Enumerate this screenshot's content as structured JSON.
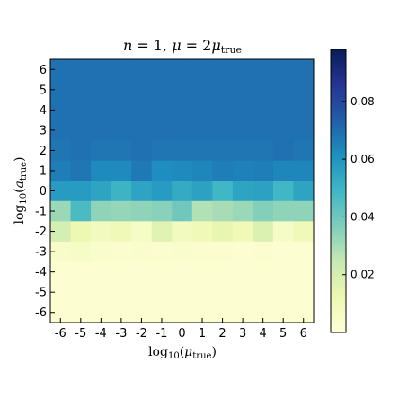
{
  "chart_data": {
    "type": "heatmap",
    "title": "n = 1,  μ = 2μ_true",
    "title_parts": {
      "lhs": "n",
      "eq1": " = 1,  ",
      "mu": "μ",
      "eq2": " = 2",
      "mu2": "μ",
      "sub": "true"
    },
    "xlabel": {
      "text": "log10(μ_true)",
      "base": "log",
      "sub10": "10",
      "open": "(",
      "var": "μ",
      "sub": "true",
      "close": ")"
    },
    "ylabel": {
      "text": "log10(a_true)",
      "base": "log",
      "sub10": "10",
      "open": "(",
      "var": "a",
      "sub": "true",
      "close": ")"
    },
    "x": [
      -6,
      -5,
      -4,
      -3,
      -2,
      -1,
      0,
      1,
      2,
      3,
      4,
      5,
      6
    ],
    "y": [
      -6,
      -5,
      -4,
      -3,
      -2,
      -1,
      0,
      1,
      2,
      3,
      4,
      5,
      6
    ],
    "x_tick_labels": [
      "-6",
      "-5",
      "-4",
      "-3",
      "-2",
      "-1",
      "0",
      "1",
      "2",
      "3",
      "4",
      "5",
      "6"
    ],
    "y_tick_labels": [
      "-6",
      "-5",
      "-4",
      "-3",
      "-2",
      "-1",
      "0",
      "1",
      "2",
      "3",
      "4",
      "5",
      "6"
    ],
    "values_rows_top_to_bottom": [
      [
        0.069,
        0.069,
        0.069,
        0.069,
        0.069,
        0.069,
        0.069,
        0.069,
        0.069,
        0.069,
        0.069,
        0.069,
        0.069
      ],
      [
        0.069,
        0.069,
        0.069,
        0.069,
        0.069,
        0.069,
        0.069,
        0.069,
        0.069,
        0.069,
        0.069,
        0.069,
        0.069
      ],
      [
        0.069,
        0.069,
        0.069,
        0.069,
        0.069,
        0.069,
        0.069,
        0.069,
        0.069,
        0.069,
        0.069,
        0.069,
        0.069
      ],
      [
        0.069,
        0.069,
        0.069,
        0.069,
        0.069,
        0.069,
        0.069,
        0.069,
        0.069,
        0.069,
        0.069,
        0.069,
        0.069
      ],
      [
        0.068,
        0.069,
        0.068,
        0.068,
        0.069,
        0.068,
        0.068,
        0.068,
        0.068,
        0.068,
        0.068,
        0.069,
        0.068
      ],
      [
        0.066,
        0.068,
        0.063,
        0.063,
        0.067,
        0.062,
        0.063,
        0.064,
        0.066,
        0.065,
        0.066,
        0.064,
        0.064
      ],
      [
        0.058,
        0.058,
        0.055,
        0.05,
        0.055,
        0.058,
        0.053,
        0.056,
        0.049,
        0.055,
        0.056,
        0.049,
        0.055
      ],
      [
        0.032,
        0.047,
        0.034,
        0.033,
        0.034,
        0.035,
        0.04,
        0.028,
        0.03,
        0.032,
        0.036,
        0.034,
        0.034
      ],
      [
        0.02,
        0.012,
        0.008,
        0.01,
        0.006,
        0.016,
        0.008,
        0.01,
        0.014,
        0.01,
        0.018,
        0.006,
        0.01
      ],
      [
        0.005,
        0.006,
        0.004,
        0.003,
        0.004,
        0.003,
        0.004,
        0.003,
        0.003,
        0.002,
        0.003,
        0.002,
        0.002
      ],
      [
        0.002,
        0.002,
        0.002,
        0.002,
        0.002,
        0.002,
        0.002,
        0.002,
        0.002,
        0.002,
        0.002,
        0.002,
        0.002
      ],
      [
        0.002,
        0.002,
        0.002,
        0.002,
        0.002,
        0.002,
        0.002,
        0.002,
        0.002,
        0.002,
        0.002,
        0.002,
        0.002
      ],
      [
        0.002,
        0.002,
        0.002,
        0.002,
        0.002,
        0.002,
        0.002,
        0.002,
        0.002,
        0.002,
        0.002,
        0.002,
        0.002
      ]
    ],
    "vmin": 0.0,
    "vmax": 0.098,
    "colormap": "YlGnBu",
    "colormap_stops": [
      "#ffffd9",
      "#edf8b1",
      "#c7e9b4",
      "#7fcdbb",
      "#41b6c4",
      "#1d91c0",
      "#225ea8",
      "#253494",
      "#081d58"
    ],
    "colorbar_ticks": [
      0.02,
      0.04,
      0.06,
      0.08
    ],
    "colorbar_tick_labels": [
      "0.02",
      "0.04",
      "0.06",
      "0.08"
    ],
    "grid": false,
    "legend": "colorbar-right"
  }
}
